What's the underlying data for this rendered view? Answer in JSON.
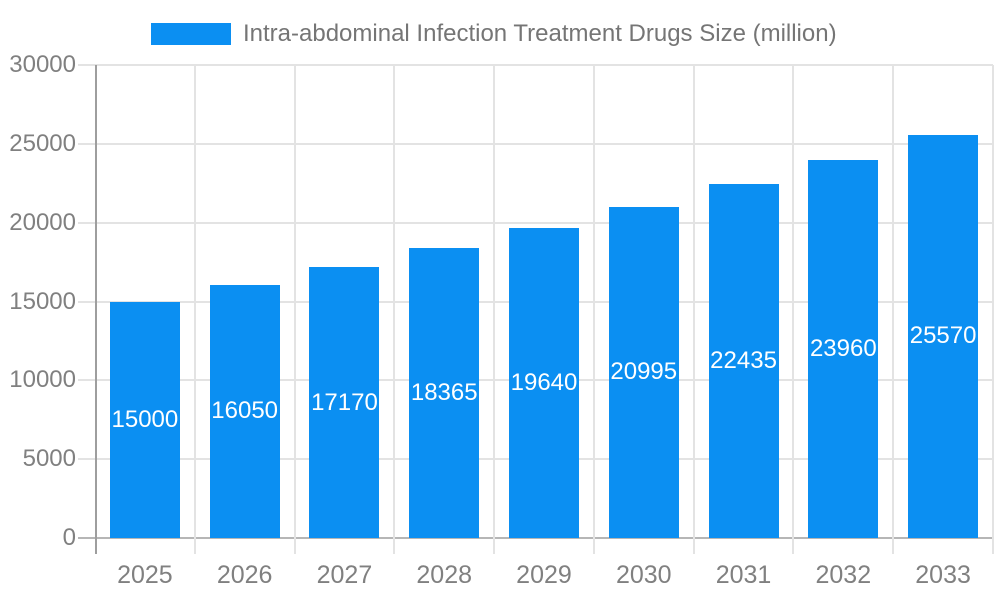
{
  "legend": {
    "label": "Intra-abdominal Infection Treatment Drugs Size (million)"
  },
  "chart_data": {
    "type": "bar",
    "title": "Intra-abdominal Infection Treatment Drugs Size (million)",
    "categories": [
      "2025",
      "2026",
      "2027",
      "2028",
      "2029",
      "2030",
      "2031",
      "2032",
      "2033"
    ],
    "values": [
      15000,
      16050,
      17170,
      18365,
      19640,
      20995,
      22435,
      23960,
      25570
    ],
    "bar_labels": [
      "15000",
      "16050",
      "17170",
      "18365",
      "19640",
      "20995",
      "22435",
      "23960",
      "25570"
    ],
    "xlabel": "",
    "ylabel": "",
    "ylim": [
      0,
      30000
    ],
    "yticks": [
      0,
      5000,
      10000,
      15000,
      20000,
      25000,
      30000
    ],
    "grid": true,
    "legend_position": "top",
    "colors": {
      "bar": "#0b8ff2",
      "bar_label": "#ffffff",
      "axis_text": "#808080",
      "legend_text": "#757575",
      "gridline": "#e3e3e3",
      "baseline": "#b6b6b6",
      "axis_line": "#9e9e9e",
      "background": "#ffffff"
    }
  }
}
